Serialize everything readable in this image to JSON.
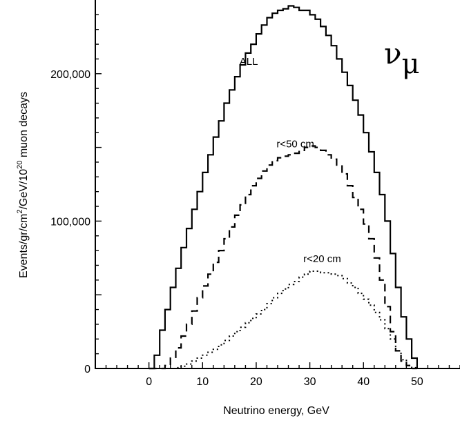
{
  "chart_data": {
    "type": "line",
    "title": "",
    "particle_label": {
      "main": "ν",
      "sub": "μ"
    },
    "xlabel": "Neutrino energy, GeV",
    "ylabel": "Events/gr/cm²/GeV/10²⁰ muon decays",
    "ylabel_parts": {
      "a": "Events/gr/cm",
      "a_sup": "2",
      "b": "/GeV/10",
      "b_sup": "20",
      "c": " muon decays"
    },
    "xlim": [
      -10,
      58
    ],
    "ylim": [
      0,
      250000
    ],
    "x_ticks": [
      0,
      10,
      20,
      30,
      40,
      50
    ],
    "x_tick_labels": [
      "0",
      "10",
      "20",
      "30",
      "40",
      "50"
    ],
    "y_ticks": [
      0,
      100000,
      200000
    ],
    "y_tick_labels": [
      "0",
      "100,000",
      "200,000"
    ],
    "grid": false,
    "series": [
      {
        "name": "ALL",
        "style": "solid",
        "x": [
          0,
          1,
          2,
          3,
          4,
          5,
          6,
          7,
          8,
          9,
          10,
          11,
          12,
          13,
          14,
          15,
          16,
          17,
          18,
          19,
          20,
          21,
          22,
          23,
          24,
          25,
          26,
          27,
          28,
          29,
          30,
          31,
          32,
          33,
          34,
          35,
          36,
          37,
          38,
          39,
          40,
          41,
          42,
          43,
          44,
          45,
          46,
          47,
          48,
          49,
          50
        ],
        "values": [
          0,
          9000,
          26000,
          40000,
          55000,
          68000,
          82000,
          95000,
          108000,
          120000,
          133000,
          145000,
          157000,
          168000,
          180000,
          189000,
          198000,
          206000,
          214000,
          220000,
          227000,
          233000,
          238000,
          241000,
          243000,
          244000,
          246000,
          245000,
          243000,
          243000,
          240000,
          237000,
          232000,
          226000,
          219000,
          210000,
          201000,
          192000,
          182000,
          172000,
          160000,
          147000,
          133000,
          118000,
          100000,
          78000,
          55000,
          35000,
          20000,
          7000,
          0
        ]
      },
      {
        "name": "r<50 cm",
        "style": "dashed",
        "x": [
          0,
          1,
          2,
          3,
          4,
          5,
          6,
          7,
          8,
          9,
          10,
          11,
          12,
          13,
          14,
          15,
          16,
          17,
          18,
          19,
          20,
          21,
          22,
          23,
          24,
          25,
          26,
          27,
          28,
          29,
          30,
          31,
          32,
          33,
          34,
          35,
          36,
          37,
          38,
          39,
          40,
          41,
          42,
          43,
          44,
          45,
          46,
          47,
          48,
          49,
          50
        ],
        "values": [
          0,
          0,
          0,
          2000,
          7000,
          14000,
          22000,
          30000,
          39000,
          48000,
          56000,
          64000,
          72000,
          80000,
          88000,
          96000,
          104000,
          111000,
          118000,
          124000,
          129000,
          134000,
          138000,
          141000,
          143000,
          144000,
          145000,
          146000,
          148000,
          150000,
          151000,
          150000,
          148000,
          145000,
          142000,
          138000,
          132000,
          124000,
          116000,
          108000,
          98000,
          88000,
          75000,
          60000,
          42000,
          25000,
          12000,
          5000,
          2000,
          0,
          0
        ]
      },
      {
        "name": "r<20 cm",
        "style": "dotted",
        "x": [
          0,
          1,
          2,
          3,
          4,
          5,
          6,
          7,
          8,
          9,
          10,
          11,
          12,
          13,
          14,
          15,
          16,
          17,
          18,
          19,
          20,
          21,
          22,
          23,
          24,
          25,
          26,
          27,
          28,
          29,
          30,
          31,
          32,
          33,
          34,
          35,
          36,
          37,
          38,
          39,
          40,
          41,
          42,
          43,
          44,
          45,
          46,
          47,
          48,
          49,
          50
        ],
        "values": [
          0,
          0,
          0,
          0,
          0,
          500,
          1500,
          3000,
          5000,
          7000,
          9000,
          11000,
          13000,
          16000,
          19000,
          22000,
          25000,
          28000,
          31000,
          34000,
          37000,
          40000,
          44000,
          48000,
          51000,
          54000,
          57000,
          59000,
          62000,
          64000,
          66000,
          66000,
          65000,
          65000,
          64000,
          63000,
          61000,
          58000,
          55000,
          51000,
          47000,
          43000,
          38000,
          33000,
          27000,
          20000,
          12000,
          6000,
          2000,
          500,
          0
        ]
      }
    ],
    "annotations": [
      {
        "text": "ALL",
        "x": 18.6,
        "y": 206000
      },
      {
        "text": "r<50 cm",
        "x": 27.3,
        "y": 150000
      },
      {
        "text": "r<20 cm",
        "x": 32.3,
        "y": 72000
      }
    ]
  }
}
